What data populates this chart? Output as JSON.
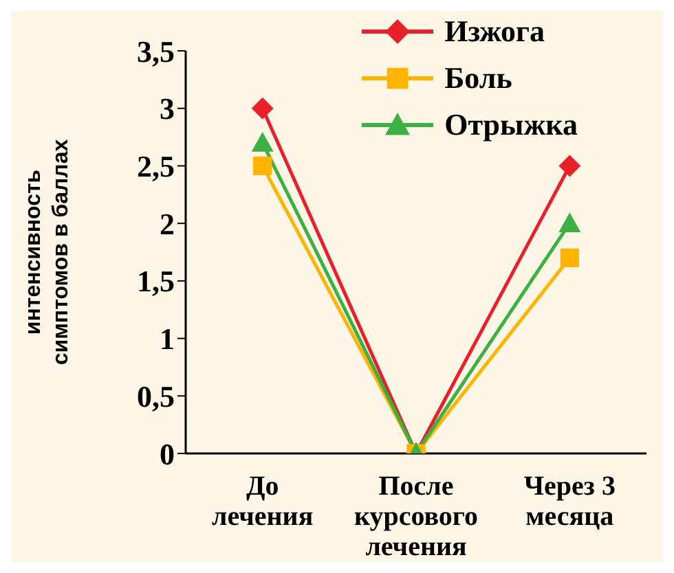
{
  "chart_data": {
    "type": "line",
    "ylabel": "интенсивность симптомов в баллах",
    "categories": [
      "До лечения",
      "После курсового лечения",
      "Через 3 месяца"
    ],
    "series": [
      {
        "name": "Изжога",
        "color": "#e8202a",
        "marker": "diamond",
        "values": [
          3,
          0,
          2.5
        ]
      },
      {
        "name": "Боль",
        "color": "#ffb400",
        "marker": "square",
        "values": [
          2.5,
          0,
          1.7
        ]
      },
      {
        "name": "Отрыжка",
        "color": "#3cb043",
        "marker": "triangle",
        "values": [
          2.7,
          0,
          2.0
        ]
      }
    ],
    "ylim": [
      0,
      3.5
    ],
    "yticks": [
      0,
      {
        "value": 0.5,
        "label": "0,5"
      },
      1,
      {
        "value": 1.5,
        "label": "1,5"
      },
      2,
      {
        "value": 2.5,
        "label": "2,5"
      },
      3,
      {
        "value": 3.5,
        "label": "3,5"
      }
    ],
    "grid": false,
    "legend": "top right",
    "line_style": "solid"
  }
}
